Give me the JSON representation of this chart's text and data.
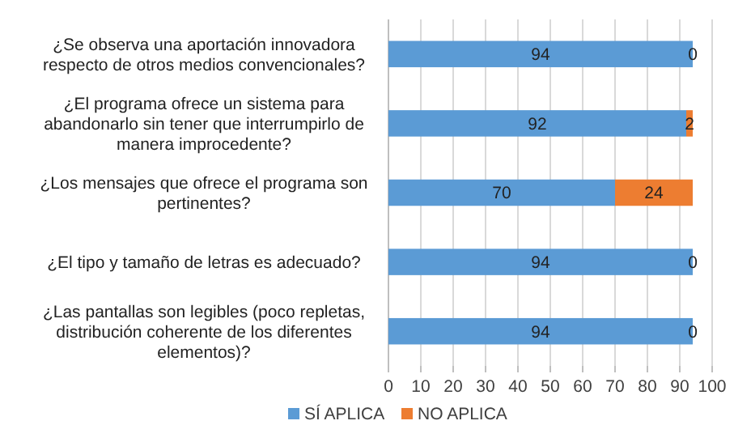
{
  "chart_data": {
    "type": "bar",
    "orientation": "horizontal",
    "stacked": true,
    "categories": [
      "¿Se observa una aportación innovadora respecto de otros medios convencionales?",
      "¿El programa ofrece un sistema para abandonarlo sin tener que interrumpirlo de manera improcedente?",
      "¿Los mensajes que ofrece el programa son pertinentes?",
      "¿El tipo y tamaño de letras es adecuado?",
      "¿Las pantallas son legibles (poco repletas, distribución coherente de los diferentes elementos)?"
    ],
    "series": [
      {
        "name": "SÍ APLICA",
        "color": "#5b9bd5",
        "values": [
          94,
          92,
          70,
          94,
          94
        ]
      },
      {
        "name": "NO APLICA",
        "color": "#ed7d31",
        "values": [
          0,
          2,
          24,
          0,
          0
        ]
      }
    ],
    "xlim": [
      0,
      100
    ],
    "xticks": [
      0,
      10,
      20,
      30,
      40,
      50,
      60,
      70,
      80,
      90,
      100
    ],
    "grid": "x",
    "data_labels": true,
    "legend": "bottom"
  }
}
